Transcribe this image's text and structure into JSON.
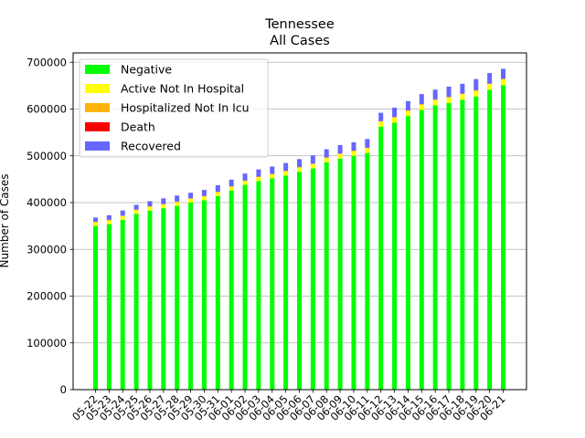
{
  "chart_data": {
    "type": "bar",
    "stacked": true,
    "title": "Tennessee",
    "subtitle": "All Cases",
    "xlabel": "",
    "ylabel": "Number of Cases",
    "ylim": [
      0,
      720000
    ],
    "yticks": [
      0,
      100000,
      200000,
      300000,
      400000,
      500000,
      600000,
      700000
    ],
    "grid": "horizontal",
    "legend_position": "top-left",
    "categories": [
      "05-22",
      "05-23",
      "05-24",
      "05-25",
      "05-26",
      "05-27",
      "05-28",
      "05-29",
      "05-30",
      "05-31",
      "06-01",
      "06-02",
      "06-03",
      "06-04",
      "06-05",
      "06-06",
      "06-07",
      "06-08",
      "06-09",
      "06-10",
      "06-11",
      "06-12",
      "06-13",
      "06-14",
      "06-15",
      "06-16",
      "06-17",
      "06-18",
      "06-19",
      "06-20",
      "06-21"
    ],
    "series": [
      {
        "name": "Negative",
        "color": "#00ff00",
        "values": [
          350000,
          354000,
          363000,
          376000,
          383000,
          388000,
          393000,
          400000,
          405000,
          414000,
          426000,
          438000,
          446000,
          452000,
          458000,
          466000,
          473000,
          486000,
          494000,
          500000,
          506000,
          562000,
          571000,
          585000,
          598000,
          608000,
          613000,
          620000,
          627000,
          641000,
          651000
        ]
      },
      {
        "name": "Active Not In Hospital",
        "color": "#ffff00",
        "values": [
          8000,
          8000,
          8000,
          8000,
          8000,
          8000,
          8000,
          8000,
          8000,
          8000,
          8000,
          8000,
          8500,
          8500,
          9000,
          9000,
          9500,
          9500,
          10000,
          10000,
          10500,
          11000,
          11000,
          11000,
          11500,
          11500,
          12000,
          12000,
          12000,
          12500,
          12500
        ]
      },
      {
        "name": "Hospitalized Not In Icu",
        "color": "#ffb30f",
        "values": [
          800,
          800,
          800,
          800,
          800,
          800,
          800,
          800,
          800,
          800,
          800,
          800,
          800,
          800,
          800,
          800,
          800,
          800,
          800,
          800,
          800,
          800,
          800,
          800,
          800,
          800,
          800,
          800,
          800,
          800,
          800
        ]
      },
      {
        "name": "Death",
        "color": "#ff0000",
        "values": [
          350,
          355,
          360,
          365,
          370,
          375,
          380,
          385,
          390,
          395,
          400,
          405,
          410,
          415,
          420,
          425,
          430,
          435,
          440,
          445,
          450,
          455,
          460,
          465,
          470,
          475,
          480,
          485,
          490,
          495,
          500
        ]
      },
      {
        "name": "Recovered",
        "color": "#6666ff",
        "values": [
          8850,
          9845,
          10840,
          10035,
          10830,
          11825,
          12820,
          11815,
          12810,
          13805,
          13800,
          14795,
          15290,
          15285,
          16280,
          16775,
          17270,
          17265,
          17760,
          17755,
          18250,
          17745,
          19740,
          19735,
          21230,
          20725,
          21720,
          20715,
          23710,
          22205,
          21200
        ]
      }
    ]
  }
}
